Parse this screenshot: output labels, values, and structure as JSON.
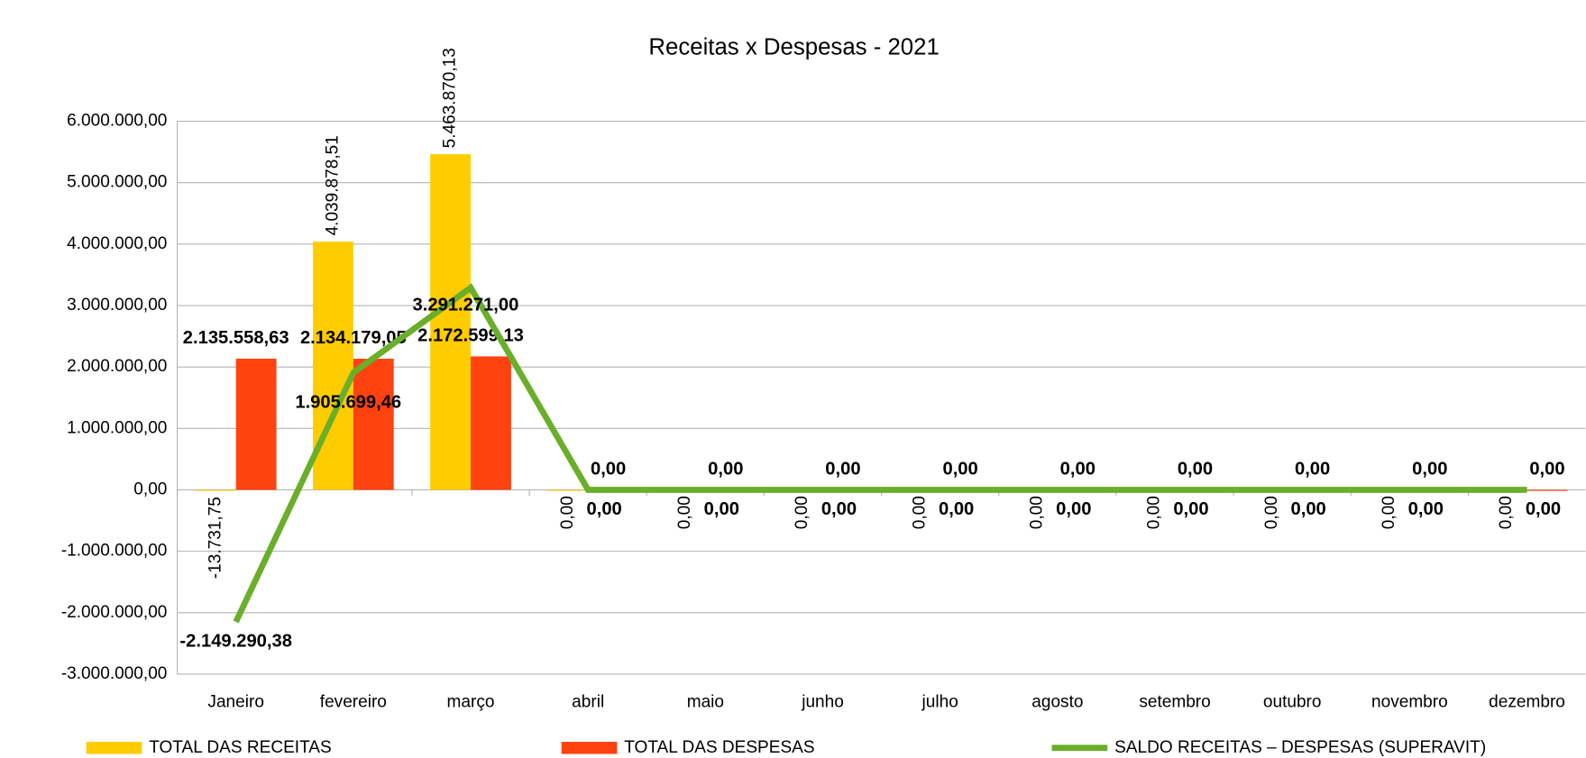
{
  "chart_data": {
    "type": "bar-line",
    "title": "Receitas x Despesas - 2021",
    "categories": [
      "Janeiro",
      "fevereiro",
      "março",
      "abril",
      "maio",
      "junho",
      "julho",
      "agosto",
      "setembro",
      "outubro",
      "novembro",
      "dezembro"
    ],
    "series": [
      {
        "name": "TOTAL DAS RECEITAS",
        "type": "bar",
        "color": "#ffcc00",
        "values": [
          -13731.75,
          4039878.51,
          5463870.13,
          0,
          0,
          0,
          0,
          0,
          0,
          0,
          0,
          0
        ],
        "value_labels": [
          "-13.731,75",
          "4.039.878,51",
          "5.463.870,13",
          "0,00",
          "0,00",
          "0,00",
          "0,00",
          "0,00",
          "0,00",
          "0,00",
          "0,00",
          "0,00"
        ]
      },
      {
        "name": "TOTAL DAS DESPESAS",
        "type": "bar",
        "color": "#ff420e",
        "values": [
          2135558.63,
          2134179.05,
          2172599.13,
          0,
          0,
          0,
          0,
          0,
          0,
          0,
          0,
          0
        ],
        "value_labels": [
          "2.135.558,63",
          "2.134.179,05",
          "2.172.599,13",
          "0,00",
          "0,00",
          "0,00",
          "0,00",
          "0,00",
          "0,00",
          "0,00",
          "0,00",
          "0,00"
        ]
      },
      {
        "name": "SALDO RECEITAS – DESPESAS (SUPERAVIT)",
        "type": "line",
        "color": "#6aae2a",
        "values": [
          -2149290.38,
          1905699.46,
          3291271.0,
          0,
          0,
          0,
          0,
          0,
          0,
          0,
          0,
          0
        ],
        "value_labels": [
          "-2.149.290,38",
          "1.905.699,46",
          "3.291.271,00",
          "0,00",
          "0,00",
          "0,00",
          "0,00",
          "0,00",
          "0,00",
          "0,00",
          "0,00",
          "0,00"
        ]
      }
    ],
    "ylim": [
      -3000000,
      6000000
    ],
    "yticks": [
      {
        "value": -3000000,
        "label": "-3.000.000,00"
      },
      {
        "value": -2000000,
        "label": "-2.000.000,00"
      },
      {
        "value": -1000000,
        "label": "-1.000.000,00"
      },
      {
        "value": 0,
        "label": "0,00"
      },
      {
        "value": 1000000,
        "label": "1.000.000,00"
      },
      {
        "value": 2000000,
        "label": "2.000.000,00"
      },
      {
        "value": 3000000,
        "label": "3.000.000,00"
      },
      {
        "value": 4000000,
        "label": "4.000.000,00"
      },
      {
        "value": 5000000,
        "label": "5.000.000,00"
      },
      {
        "value": 6000000,
        "label": "6.000.000,00"
      }
    ],
    "grid": true,
    "legend": "bottom"
  }
}
